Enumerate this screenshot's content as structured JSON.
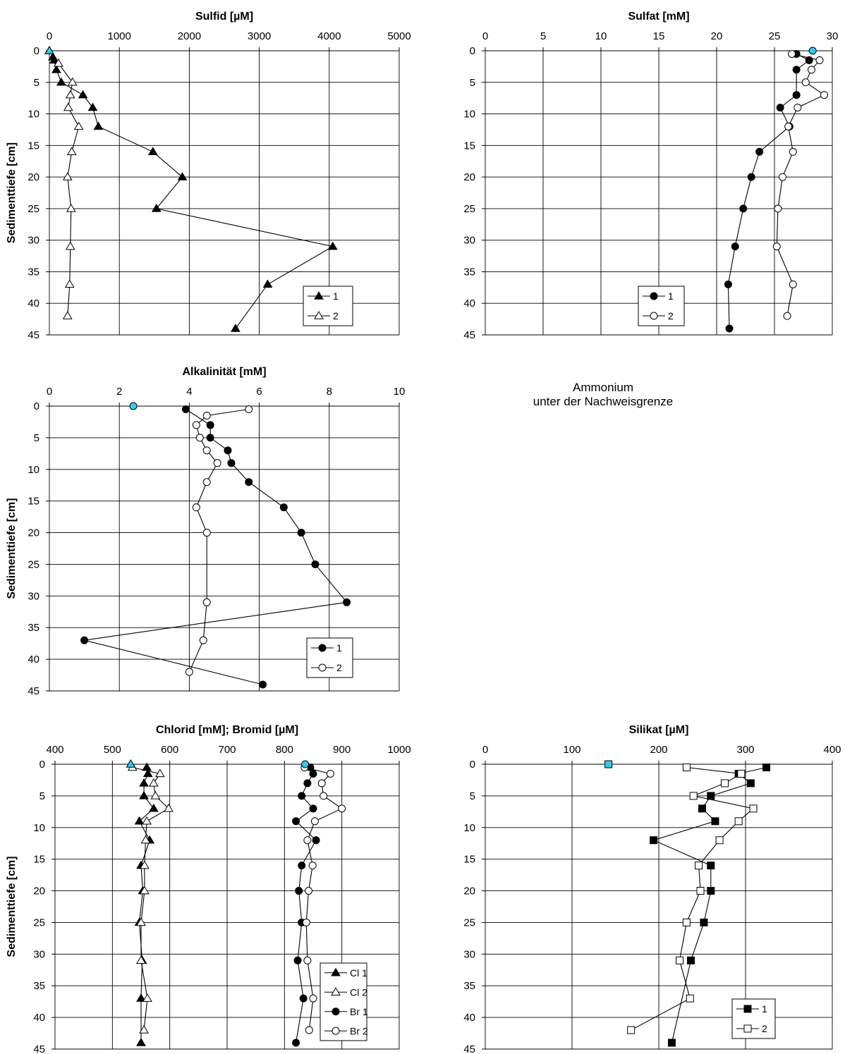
{
  "note": {
    "line1": "Ammonium",
    "line2": "unter der Nachweisgrenze"
  },
  "colors": {
    "marker_cyan": "#33ccee",
    "line": "#000000",
    "grid": "#000000"
  },
  "chart_data": [
    {
      "id": "sulfid",
      "type": "line",
      "title": "Sulfid [µM]",
      "ylabel": "Sedimenttiefe [cm]",
      "xlim": [
        0,
        5000
      ],
      "xticks": [
        0,
        1000,
        2000,
        3000,
        4000,
        5000
      ],
      "ylim": [
        45,
        0
      ],
      "yticks": [
        0,
        5,
        10,
        15,
        20,
        25,
        30,
        35,
        40,
        45
      ],
      "legend": "bottom-right",
      "highlight": {
        "x": 0,
        "y": 0,
        "marker": "triangle"
      },
      "series": [
        {
          "name": "1",
          "marker": "triangle",
          "fill": "filled",
          "x": [
            50,
            70,
            100,
            170,
            480,
            620,
            700,
            1480,
            1900,
            1530,
            4050,
            3120,
            2660
          ],
          "y": [
            1,
            1.5,
            3,
            5,
            7,
            9,
            12,
            16,
            20,
            25,
            31,
            37,
            44
          ]
        },
        {
          "name": "2",
          "marker": "triangle",
          "fill": "open",
          "x": [
            0,
            130,
            330,
            300,
            270,
            420,
            320,
            260,
            310,
            300,
            290,
            260
          ],
          "y": [
            0,
            2,
            5,
            7,
            9,
            12,
            16,
            20,
            25,
            31,
            37,
            42
          ]
        }
      ]
    },
    {
      "id": "sulfat",
      "type": "line",
      "title": "Sulfat [mM]",
      "ylabel": "",
      "xlim": [
        0,
        30
      ],
      "xticks": [
        0,
        5,
        10,
        15,
        20,
        25,
        30
      ],
      "ylim": [
        45,
        0
      ],
      "yticks": [
        0,
        5,
        10,
        15,
        20,
        25,
        30,
        35,
        40,
        45
      ],
      "legend": "bottom-left",
      "highlight": {
        "x": 28.3,
        "y": 0,
        "marker": "circle"
      },
      "series": [
        {
          "name": "1",
          "marker": "circle",
          "fill": "filled",
          "x": [
            26.9,
            28,
            26.9,
            26.9,
            25.5,
            26.3,
            23.7,
            23.0,
            22.3,
            21.6,
            21.0,
            21.1
          ],
          "y": [
            0.5,
            1.5,
            3,
            7,
            9,
            12,
            16,
            20,
            25,
            31,
            37,
            44
          ]
        },
        {
          "name": "2",
          "marker": "circle",
          "fill": "open",
          "x": [
            26.5,
            28.9,
            28.2,
            27.7,
            29.3,
            27.0,
            26.2,
            26.6,
            25.7,
            25.3,
            25.2,
            26.6,
            26.1
          ],
          "y": [
            0.5,
            1.5,
            3,
            5,
            7,
            9,
            12,
            16,
            20,
            25,
            31,
            37,
            42
          ]
        }
      ]
    },
    {
      "id": "alkalinitaet",
      "type": "line",
      "title": "Alkalinität [mM]",
      "ylabel": "Sedimenttiefe [cm]",
      "xlim": [
        0,
        10
      ],
      "xticks": [
        0,
        2,
        4,
        6,
        8,
        10
      ],
      "ylim": [
        45,
        0
      ],
      "yticks": [
        0,
        5,
        10,
        15,
        20,
        25,
        30,
        35,
        40,
        45
      ],
      "legend": "bottom-right",
      "highlight": {
        "x": 2.4,
        "y": 0,
        "marker": "circle"
      },
      "series": [
        {
          "name": "1",
          "marker": "circle",
          "fill": "filled",
          "x": [
            3.9,
            4.6,
            4.6,
            5.1,
            5.2,
            5.7,
            6.7,
            7.2,
            7.6,
            8.5,
            1.0,
            6.1
          ],
          "y": [
            0.5,
            3,
            5,
            7,
            9,
            12,
            16,
            20,
            25,
            31,
            37,
            44
          ]
        },
        {
          "name": "2",
          "marker": "circle",
          "fill": "open",
          "x": [
            5.7,
            4.5,
            4.2,
            4.3,
            4.5,
            4.8,
            4.5,
            4.2,
            4.5,
            4.5,
            4.4,
            4.0
          ],
          "y": [
            0.5,
            1.5,
            3,
            5,
            7,
            9,
            12,
            16,
            20,
            31,
            37,
            42
          ]
        }
      ]
    },
    {
      "id": "chlorid_bromid",
      "type": "line",
      "title": "Chlorid [mM]; Bromid [µM]",
      "ylabel": "Sedimenttiefe [cm]",
      "xlim": [
        400,
        1000
      ],
      "xticks": [
        400,
        500,
        600,
        700,
        800,
        900,
        1000
      ],
      "ylim": [
        45,
        0
      ],
      "yticks": [
        0,
        5,
        10,
        15,
        20,
        25,
        30,
        35,
        40,
        45
      ],
      "legend": "bottom-right",
      "highlights": [
        {
          "x": 532,
          "y": 0,
          "marker": "triangle"
        },
        {
          "x": 836,
          "y": 0,
          "marker": "circle"
        }
      ],
      "series": [
        {
          "name": "Cl 1",
          "marker": "triangle",
          "fill": "filled",
          "x": [
            560,
            562,
            555,
            555,
            572,
            547,
            565,
            550,
            553,
            547,
            552,
            550,
            550
          ],
          "y": [
            0.5,
            1.5,
            3,
            5,
            7,
            9,
            12,
            16,
            20,
            25,
            31,
            37,
            44
          ]
        },
        {
          "name": "Cl 2",
          "marker": "triangle",
          "fill": "open",
          "x": [
            535,
            583,
            572,
            575,
            598,
            560,
            558,
            556,
            556,
            550,
            550,
            561,
            555
          ],
          "y": [
            0.5,
            1.5,
            3,
            5,
            7,
            9,
            12,
            16,
            20,
            25,
            31,
            37,
            42
          ]
        },
        {
          "name": "Br 1",
          "marker": "circle",
          "fill": "filled",
          "x": [
            845,
            850,
            840,
            830,
            850,
            820,
            855,
            830,
            825,
            830,
            823,
            833,
            820
          ],
          "y": [
            0.5,
            1.5,
            3,
            5,
            7,
            9,
            12,
            16,
            20,
            25,
            31,
            37,
            44
          ]
        },
        {
          "name": "Br 2",
          "marker": "circle",
          "fill": "open",
          "x": [
            835,
            880,
            865,
            868,
            900,
            853,
            840,
            849,
            842,
            838,
            840,
            850,
            843
          ],
          "y": [
            0.5,
            1.5,
            3,
            5,
            7,
            9,
            12,
            16,
            20,
            25,
            31,
            37,
            42
          ]
        }
      ]
    },
    {
      "id": "silikat",
      "type": "line",
      "title": "Silikat [µM]",
      "ylabel": "",
      "xlim": [
        0,
        400
      ],
      "xticks": [
        0,
        100,
        200,
        300,
        400
      ],
      "ylim": [
        45,
        0
      ],
      "yticks": [
        0,
        5,
        10,
        15,
        20,
        25,
        30,
        35,
        40,
        45
      ],
      "legend": "bottom-right",
      "highlight": {
        "x": 142,
        "y": 0,
        "marker": "square"
      },
      "series": [
        {
          "name": "1",
          "marker": "square",
          "fill": "filled",
          "x": [
            324,
            292,
            306,
            260,
            250,
            265,
            194,
            260,
            260,
            252,
            237,
            215
          ],
          "y": [
            0.5,
            1.5,
            3,
            5,
            7,
            9,
            12,
            16,
            20,
            25,
            31,
            44
          ]
        },
        {
          "name": "2",
          "marker": "square",
          "fill": "open",
          "x": [
            232,
            295,
            276,
            240,
            309,
            292,
            270,
            246,
            248,
            232,
            224,
            236,
            168
          ],
          "y": [
            0.5,
            1.5,
            3,
            5,
            7,
            9,
            12,
            16,
            20,
            25,
            31,
            37,
            42
          ]
        }
      ]
    }
  ]
}
